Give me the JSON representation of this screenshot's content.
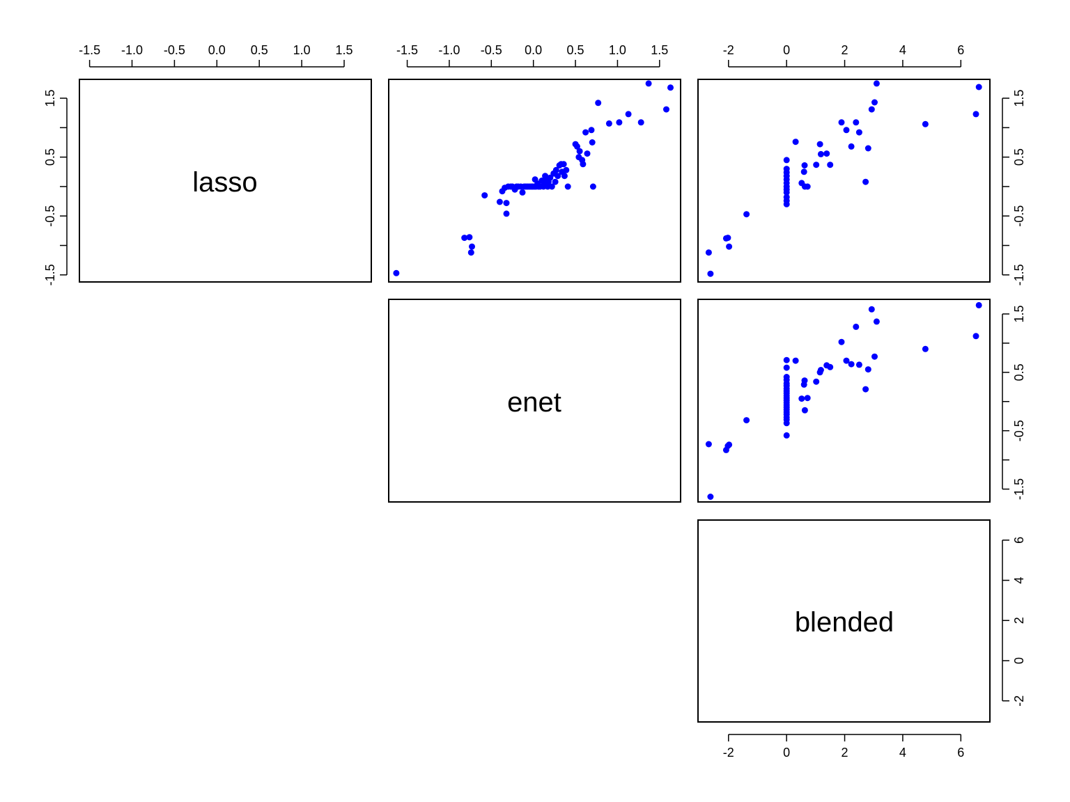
{
  "chart_data": {
    "type": "scatter",
    "plot_kind": "scatterplot matrix (upper panels)",
    "variables": [
      "lasso",
      "enet",
      "blended"
    ],
    "point_color": "#0000ff",
    "axis_ticks": {
      "lasso": [
        -1.5,
        -1.0,
        -0.5,
        0.0,
        0.5,
        1.0,
        1.5
      ],
      "enet": [
        -1.5,
        -1.0,
        -0.5,
        0.0,
        0.5,
        1.0,
        1.5
      ],
      "blended": [
        -2,
        0,
        2,
        4,
        6
      ]
    },
    "tick_labels": {
      "lasso_top": [
        "-1.5",
        "-1.0",
        "-0.5",
        "0.0",
        "0.5",
        "1.0",
        "1.5"
      ],
      "enet_top": [
        "-1.5",
        "-1.0",
        "-0.5",
        "0.0",
        "0.5",
        "1.0",
        "1.5"
      ],
      "blended_top": [
        "-2",
        "0",
        "2",
        "4",
        "6"
      ],
      "lasso_left": [
        "-1.5",
        "-0.5",
        "0.5",
        "1.5"
      ],
      "lasso_right": [
        "-1.5",
        "-0.5",
        "0.5",
        "1.5"
      ],
      "enet_right": [
        "-1.5",
        "-0.5",
        "0.5",
        "1.5"
      ],
      "blended_right": [
        "-2",
        "0",
        "2",
        "4",
        "6"
      ],
      "blended_bottom": [
        "-2",
        "0",
        "2",
        "4",
        "6"
      ]
    },
    "axis_ranges": {
      "lasso": [
        -1.62,
        1.82
      ],
      "enet": [
        -1.72,
        1.75
      ],
      "blended": [
        -3.05,
        7.0
      ]
    },
    "panels": [
      {
        "name": "enet vs lasso",
        "x_var": "enet",
        "y_var": "lasso",
        "points": [
          [
            -1.63,
            -1.47
          ],
          [
            -0.82,
            -0.87
          ],
          [
            -0.76,
            -0.86
          ],
          [
            -0.73,
            -1.02
          ],
          [
            -0.74,
            -1.12
          ],
          [
            -0.58,
            -0.15
          ],
          [
            -0.4,
            -0.26
          ],
          [
            -0.37,
            -0.08
          ],
          [
            -0.34,
            -0.02
          ],
          [
            -0.32,
            -0.28
          ],
          [
            -0.32,
            -0.46
          ],
          [
            -0.3,
            0.0
          ],
          [
            -0.27,
            0.0
          ],
          [
            -0.25,
            0.0
          ],
          [
            -0.22,
            -0.05
          ],
          [
            -0.2,
            0.0
          ],
          [
            -0.18,
            0.0
          ],
          [
            -0.15,
            0.0
          ],
          [
            -0.13,
            -0.1
          ],
          [
            -0.11,
            0.0
          ],
          [
            -0.09,
            0.0
          ],
          [
            -0.07,
            0.0
          ],
          [
            -0.05,
            0.0
          ],
          [
            -0.03,
            0.0
          ],
          [
            -0.01,
            0.0
          ],
          [
            0.01,
            0.0
          ],
          [
            0.02,
            0.12
          ],
          [
            0.03,
            0.0
          ],
          [
            0.05,
            0.05
          ],
          [
            0.06,
            0.0
          ],
          [
            0.08,
            0.0
          ],
          [
            0.1,
            0.1
          ],
          [
            0.12,
            0.0
          ],
          [
            0.13,
            0.05
          ],
          [
            0.14,
            0.18
          ],
          [
            0.16,
            0.12
          ],
          [
            0.17,
            0.0
          ],
          [
            0.18,
            0.08
          ],
          [
            0.2,
            0.15
          ],
          [
            0.22,
            0.0
          ],
          [
            0.24,
            0.22
          ],
          [
            0.26,
            0.08
          ],
          [
            0.27,
            0.28
          ],
          [
            0.29,
            0.18
          ],
          [
            0.31,
            0.36
          ],
          [
            0.33,
            0.38
          ],
          [
            0.34,
            0.25
          ],
          [
            0.36,
            0.38
          ],
          [
            0.37,
            0.18
          ],
          [
            0.39,
            0.28
          ],
          [
            0.41,
            0.0
          ],
          [
            0.5,
            0.72
          ],
          [
            0.52,
            0.68
          ],
          [
            0.54,
            0.5
          ],
          [
            0.55,
            0.6
          ],
          [
            0.58,
            0.45
          ],
          [
            0.59,
            0.38
          ],
          [
            0.62,
            0.92
          ],
          [
            0.64,
            0.56
          ],
          [
            0.69,
            0.96
          ],
          [
            0.7,
            0.75
          ],
          [
            0.71,
            0.0
          ],
          [
            0.77,
            1.42
          ],
          [
            0.9,
            1.07
          ],
          [
            1.02,
            1.09
          ],
          [
            1.13,
            1.23
          ],
          [
            1.28,
            1.09
          ],
          [
            1.37,
            1.75
          ],
          [
            1.58,
            1.31
          ],
          [
            1.63,
            1.68
          ]
        ]
      },
      {
        "name": "blended vs lasso",
        "x_var": "blended",
        "y_var": "lasso",
        "points": [
          [
            -2.68,
            -1.12
          ],
          [
            -2.62,
            -1.48
          ],
          [
            -2.08,
            -0.88
          ],
          [
            -2.02,
            -0.87
          ],
          [
            -1.98,
            -1.02
          ],
          [
            -1.38,
            -0.47
          ],
          [
            0.0,
            0.45
          ],
          [
            0.0,
            0.3
          ],
          [
            0.0,
            0.24
          ],
          [
            0.0,
            0.18
          ],
          [
            0.0,
            0.12
          ],
          [
            0.0,
            0.06
          ],
          [
            0.0,
            0.0
          ],
          [
            0.0,
            -0.05
          ],
          [
            0.0,
            -0.1
          ],
          [
            0.0,
            -0.18
          ],
          [
            0.0,
            -0.24
          ],
          [
            0.0,
            -0.3
          ],
          [
            0.31,
            0.76
          ],
          [
            0.52,
            0.06
          ],
          [
            0.6,
            0.25
          ],
          [
            0.62,
            0.36
          ],
          [
            0.63,
            0.0
          ],
          [
            0.72,
            0.0
          ],
          [
            1.02,
            0.37
          ],
          [
            1.15,
            0.72
          ],
          [
            1.18,
            0.55
          ],
          [
            1.38,
            0.56
          ],
          [
            1.5,
            0.37
          ],
          [
            1.89,
            1.09
          ],
          [
            2.06,
            0.96
          ],
          [
            2.23,
            0.68
          ],
          [
            2.39,
            1.09
          ],
          [
            2.5,
            0.92
          ],
          [
            2.72,
            0.08
          ],
          [
            2.81,
            0.65
          ],
          [
            2.93,
            1.31
          ],
          [
            3.03,
            1.43
          ],
          [
            3.1,
            1.75
          ],
          [
            4.78,
            1.06
          ],
          [
            6.52,
            1.23
          ],
          [
            6.62,
            1.69
          ]
        ]
      },
      {
        "name": "blended vs enet",
        "x_var": "blended",
        "y_var": "enet",
        "points": [
          [
            -2.68,
            -0.73
          ],
          [
            -2.62,
            -1.63
          ],
          [
            -2.08,
            -0.83
          ],
          [
            -2.02,
            -0.76
          ],
          [
            -1.98,
            -0.74
          ],
          [
            -1.38,
            -0.32
          ],
          [
            0.0,
            0.71
          ],
          [
            0.0,
            0.58
          ],
          [
            0.0,
            0.42
          ],
          [
            0.0,
            0.37
          ],
          [
            0.0,
            0.31
          ],
          [
            0.0,
            0.27
          ],
          [
            0.0,
            0.22
          ],
          [
            0.0,
            0.18
          ],
          [
            0.0,
            0.14
          ],
          [
            0.0,
            0.1
          ],
          [
            0.0,
            0.06
          ],
          [
            0.0,
            0.02
          ],
          [
            0.0,
            -0.02
          ],
          [
            0.0,
            -0.06
          ],
          [
            0.0,
            -0.1
          ],
          [
            0.0,
            -0.14
          ],
          [
            0.0,
            -0.18
          ],
          [
            0.0,
            -0.22
          ],
          [
            0.0,
            -0.27
          ],
          [
            0.0,
            -0.31
          ],
          [
            0.0,
            -0.37
          ],
          [
            0.0,
            -0.58
          ],
          [
            0.31,
            0.7
          ],
          [
            0.52,
            0.05
          ],
          [
            0.6,
            0.29
          ],
          [
            0.62,
            0.36
          ],
          [
            0.63,
            -0.15
          ],
          [
            0.72,
            0.06
          ],
          [
            1.02,
            0.34
          ],
          [
            1.15,
            0.5
          ],
          [
            1.18,
            0.54
          ],
          [
            1.38,
            0.62
          ],
          [
            1.5,
            0.59
          ],
          [
            1.89,
            1.02
          ],
          [
            2.06,
            0.7
          ],
          [
            2.23,
            0.64
          ],
          [
            2.39,
            1.28
          ],
          [
            2.5,
            0.63
          ],
          [
            2.72,
            0.21
          ],
          [
            2.81,
            0.55
          ],
          [
            2.93,
            1.58
          ],
          [
            3.03,
            0.77
          ],
          [
            3.1,
            1.37
          ],
          [
            4.78,
            0.9
          ],
          [
            6.52,
            1.12
          ],
          [
            6.62,
            1.65
          ]
        ]
      }
    ]
  }
}
